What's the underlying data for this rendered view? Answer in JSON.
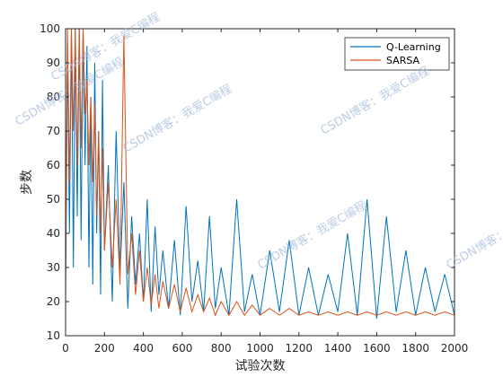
{
  "chart_data": {
    "type": "line",
    "xlabel": "试验次数",
    "ylabel": "步数",
    "xlim": [
      0,
      2000
    ],
    "ylim": [
      10,
      100
    ],
    "xticks": [
      0,
      200,
      400,
      600,
      800,
      1000,
      1200,
      1400,
      1600,
      1800,
      2000
    ],
    "yticks": [
      10,
      20,
      30,
      40,
      50,
      60,
      70,
      80,
      90,
      100
    ],
    "grid": false,
    "legend_position": "top-right",
    "watermark": "CSDN博客：我爱C编程",
    "series": [
      {
        "name": "Q-Learning",
        "color": "#0072BD",
        "x": [
          0,
          10,
          20,
          30,
          40,
          50,
          60,
          70,
          80,
          90,
          100,
          110,
          120,
          130,
          140,
          150,
          160,
          170,
          180,
          190,
          200,
          220,
          240,
          260,
          280,
          300,
          320,
          340,
          360,
          380,
          400,
          420,
          440,
          460,
          480,
          500,
          530,
          560,
          590,
          620,
          650,
          680,
          710,
          740,
          770,
          800,
          840,
          880,
          920,
          960,
          1000,
          1050,
          1100,
          1150,
          1200,
          1250,
          1300,
          1350,
          1400,
          1450,
          1500,
          1550,
          1600,
          1650,
          1700,
          1750,
          1800,
          1850,
          1900,
          1950,
          2000
        ],
        "values": [
          20,
          95,
          40,
          100,
          30,
          100,
          45,
          100,
          38,
          100,
          60,
          95,
          30,
          80,
          25,
          90,
          40,
          70,
          22,
          85,
          35,
          60,
          20,
          70,
          28,
          55,
          18,
          45,
          25,
          40,
          20,
          50,
          17,
          42,
          22,
          35,
          18,
          38,
          16,
          48,
          20,
          32,
          17,
          45,
          18,
          30,
          16,
          50,
          17,
          28,
          16,
          35,
          17,
          38,
          16,
          30,
          16,
          28,
          17,
          40,
          16,
          50,
          15,
          45,
          17,
          35,
          16,
          30,
          17,
          28,
          16
        ]
      },
      {
        "name": "SARSA",
        "color": "#D95319",
        "x": [
          0,
          10,
          20,
          30,
          40,
          50,
          60,
          70,
          80,
          90,
          100,
          110,
          120,
          130,
          140,
          150,
          160,
          170,
          180,
          190,
          200,
          220,
          240,
          260,
          280,
          300,
          320,
          340,
          360,
          380,
          400,
          420,
          440,
          460,
          480,
          500,
          530,
          560,
          590,
          620,
          650,
          680,
          710,
          740,
          770,
          800,
          840,
          880,
          920,
          960,
          1000,
          1050,
          1100,
          1150,
          1200,
          1250,
          1300,
          1350,
          1400,
          1450,
          1500,
          1550,
          1600,
          1650,
          1700,
          1750,
          1800,
          1850,
          1900,
          1950,
          2000
        ],
        "values": [
          30,
          100,
          55,
          100,
          70,
          100,
          60,
          100,
          65,
          100,
          75,
          85,
          60,
          80,
          55,
          78,
          45,
          70,
          40,
          65,
          35,
          55,
          30,
          50,
          25,
          98,
          28,
          40,
          22,
          35,
          20,
          30,
          19,
          28,
          18,
          26,
          18,
          25,
          17,
          24,
          17,
          22,
          17,
          21,
          16,
          20,
          16,
          20,
          16,
          19,
          16,
          18,
          16,
          18,
          16,
          17,
          16,
          17,
          16,
          17,
          16,
          17,
          16,
          17,
          16,
          17,
          16,
          17,
          16,
          17,
          16
        ]
      }
    ]
  }
}
